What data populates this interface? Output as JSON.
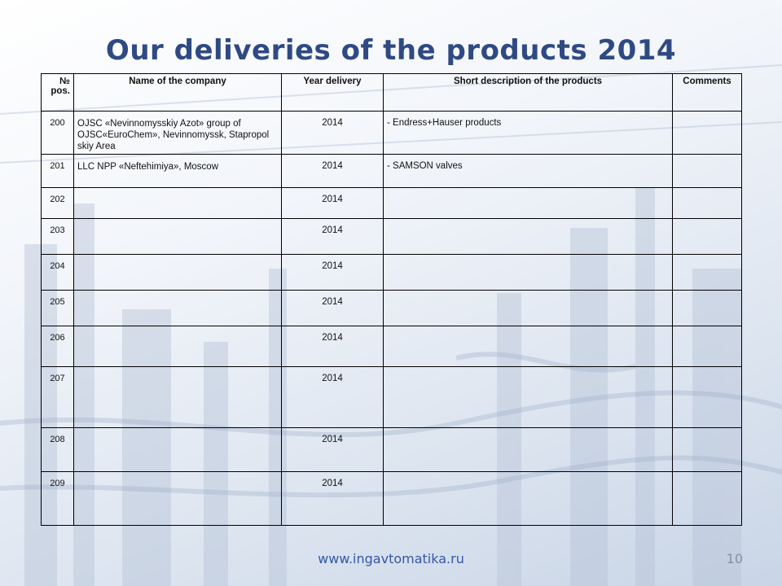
{
  "slide": {
    "title": "Our deliveries of the products 2014",
    "footer_url": "www.ingavtomatika.ru",
    "page_number": "10"
  },
  "table": {
    "headers": {
      "pos": "№ pos.",
      "company": "Name of the company",
      "year": "Year delivery",
      "description": "Short description of the products",
      "comments": "Comments"
    },
    "rows": [
      {
        "pos": "200",
        "company": "OJSC «Nevinnomysskiy Azot» group of OJSC«EuroChem», Nevinnomyssk, Stapropol skiy Area",
        "year": "2014",
        "description": "- Endress+Hauser products",
        "comments": ""
      },
      {
        "pos": "201",
        "company": "LLC NPP «Neftehimiya», Moscow",
        "year": "2014",
        "description": "- SAMSON valves",
        "comments": ""
      },
      {
        "pos": "202",
        "company": "",
        "year": "2014",
        "description": "",
        "comments": ""
      },
      {
        "pos": "203",
        "company": "",
        "year": "2014",
        "description": "",
        "comments": ""
      },
      {
        "pos": "204",
        "company": "",
        "year": "2014",
        "description": "",
        "comments": ""
      },
      {
        "pos": "205",
        "company": "",
        "year": "2014",
        "description": "",
        "comments": ""
      },
      {
        "pos": "206",
        "company": "",
        "year": "2014",
        "description": "",
        "comments": ""
      },
      {
        "pos": "207",
        "company": "",
        "year": "2014",
        "description": "",
        "comments": ""
      },
      {
        "pos": "208",
        "company": "",
        "year": "2014",
        "description": "",
        "comments": ""
      },
      {
        "pos": "209",
        "company": "",
        "year": "2014",
        "description": "",
        "comments": ""
      }
    ]
  }
}
